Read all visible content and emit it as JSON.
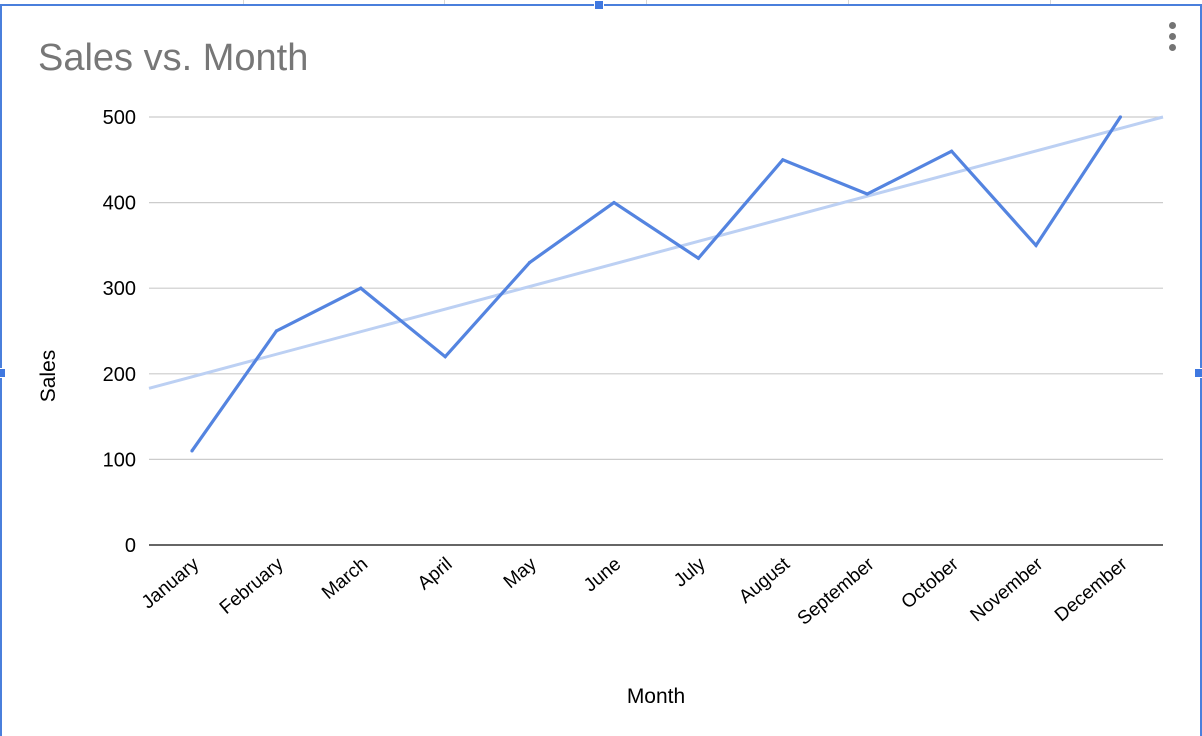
{
  "chart_data": {
    "type": "line",
    "title": "Sales vs. Month",
    "xlabel": "Month",
    "ylabel": "Sales",
    "categories": [
      "January",
      "February",
      "March",
      "April",
      "May",
      "June",
      "July",
      "August",
      "September",
      "October",
      "November",
      "December"
    ],
    "series": [
      {
        "values": [
          110,
          250,
          300,
          220,
          330,
          400,
          335,
          450,
          410,
          460,
          350,
          500
        ],
        "color": "#5484e0"
      }
    ],
    "trendline": {
      "type": "linear",
      "color": "#bcd0f3",
      "start_value": 183,
      "end_value": 500
    },
    "ylim": [
      0,
      500
    ],
    "yticks": [
      0,
      100,
      200,
      300,
      400,
      500
    ],
    "grid": true,
    "legend": "none"
  },
  "colors": {
    "selection_accent": "#3f78e0",
    "title_text": "#777777",
    "gridline": "#cccccc"
  },
  "toolbar": {
    "menu_icon": "more-vert-icon"
  }
}
